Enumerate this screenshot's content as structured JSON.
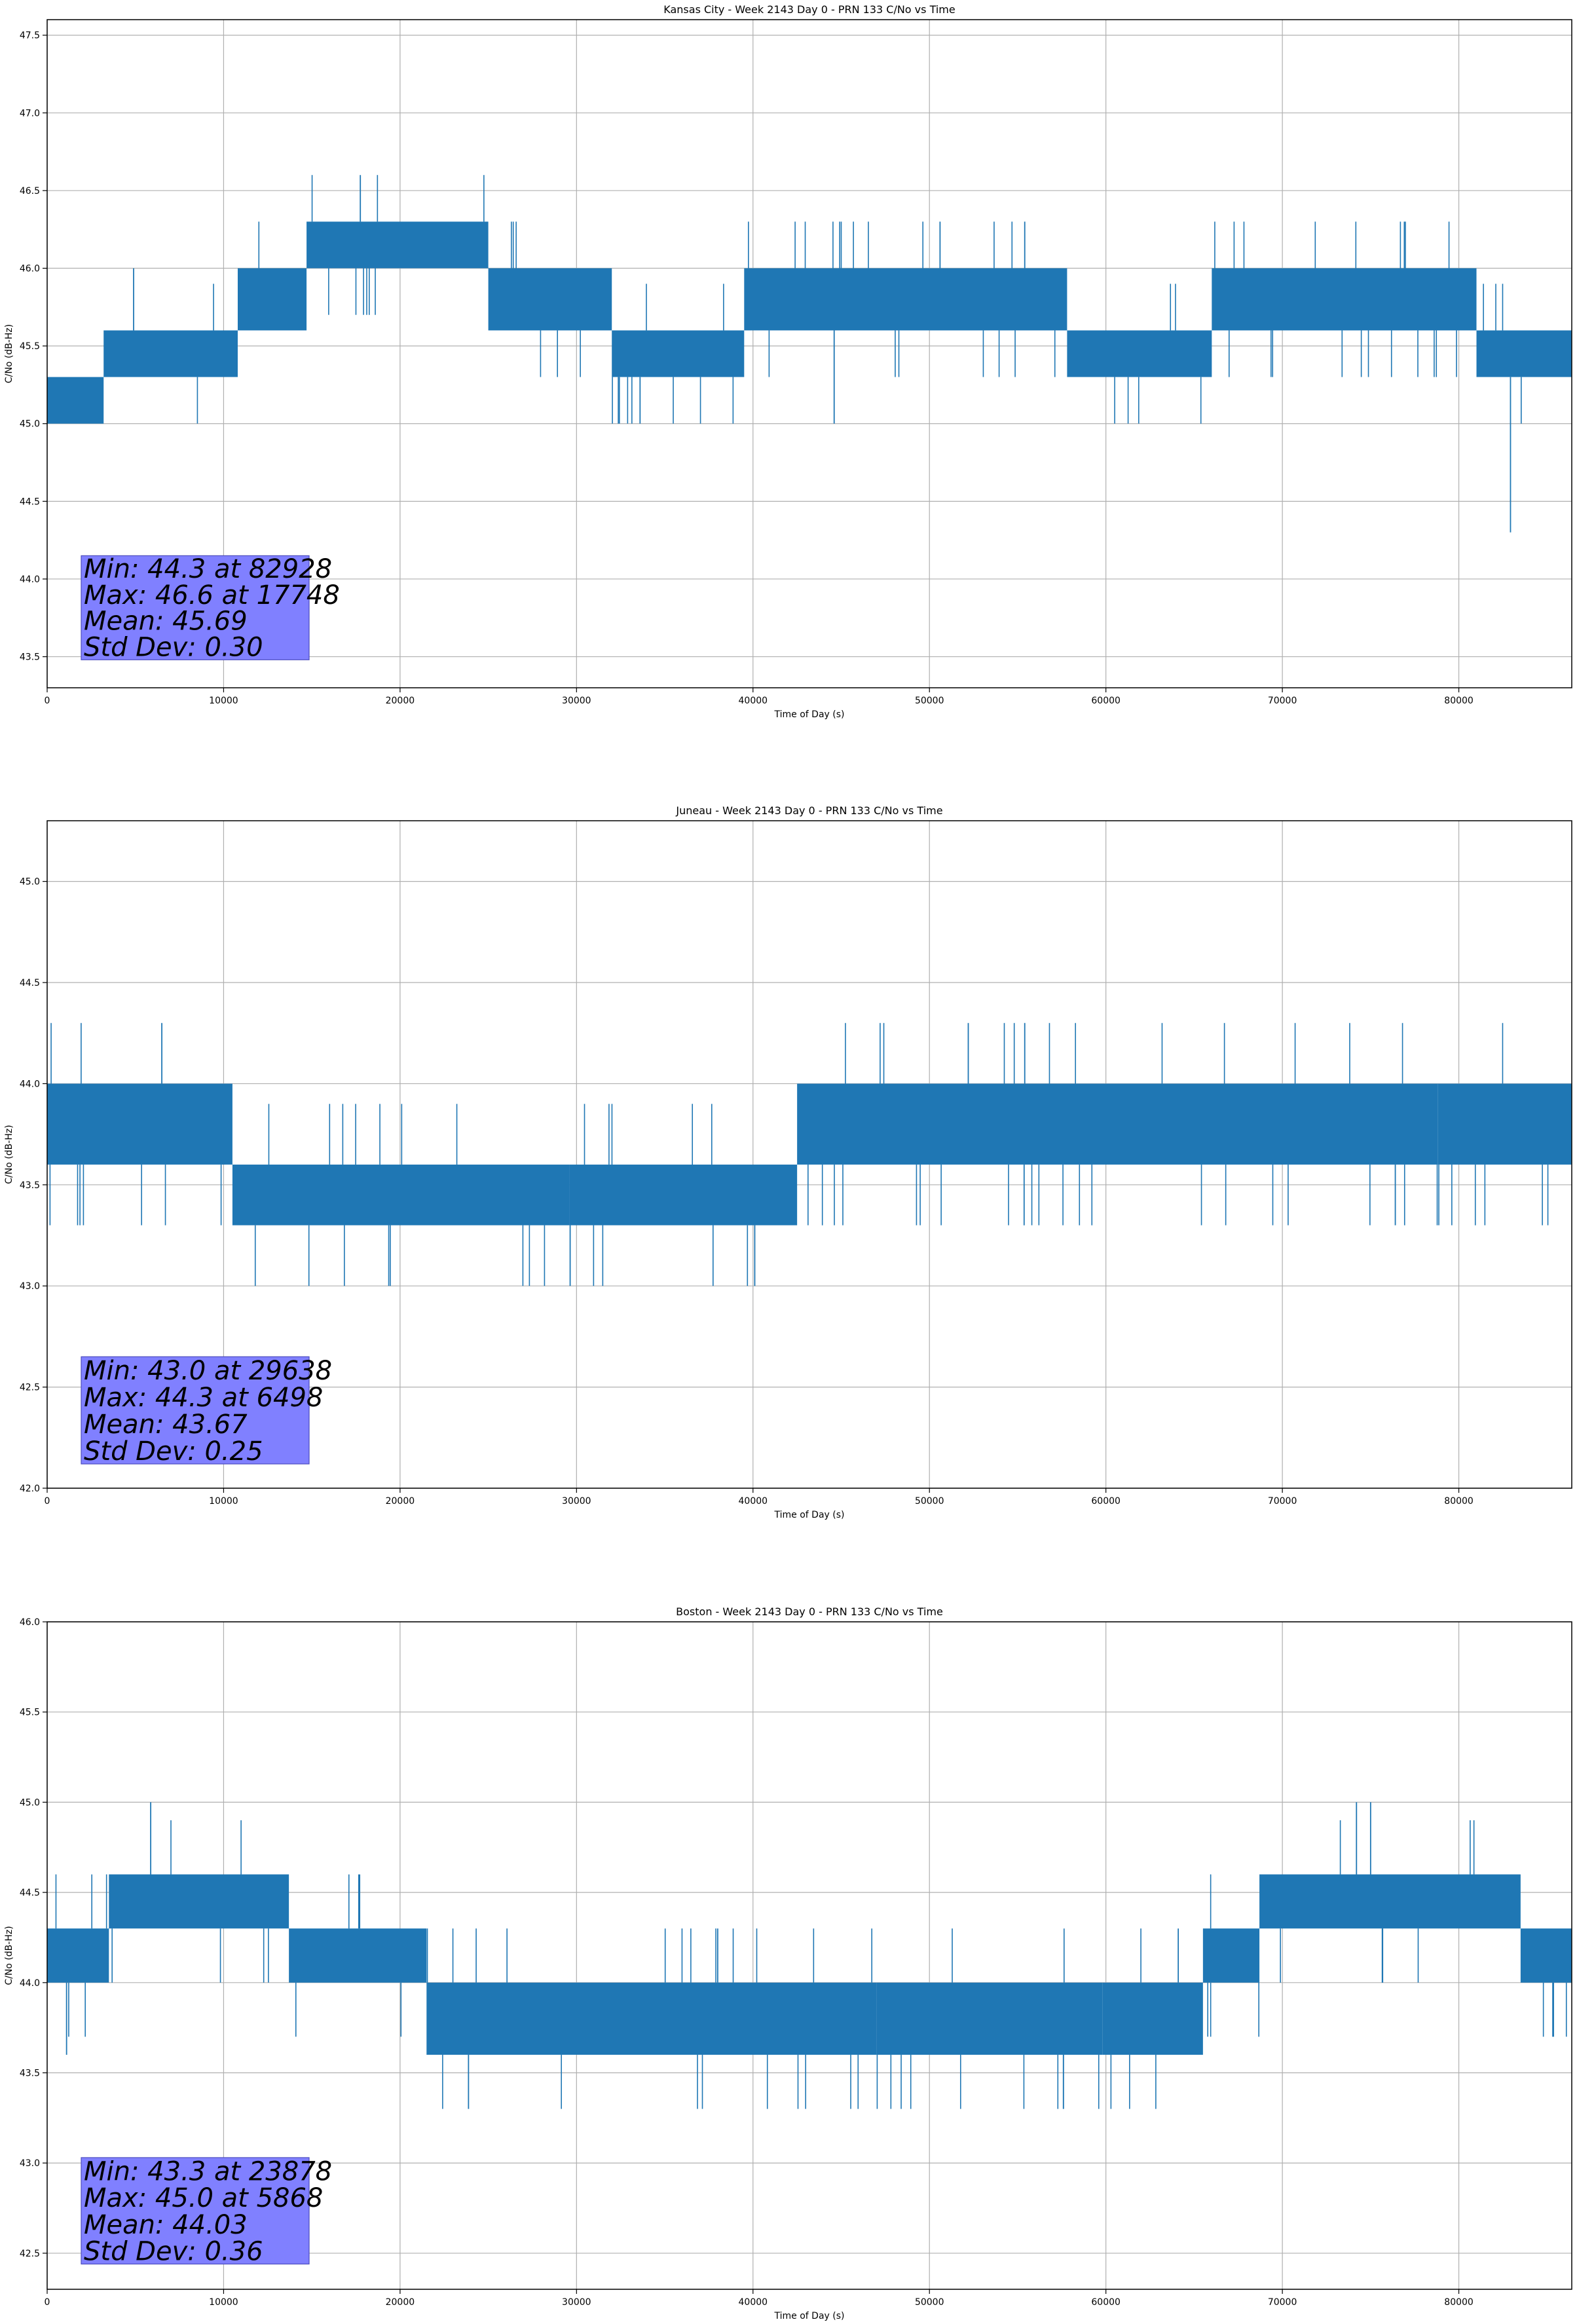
{
  "colors": {
    "series": "#1f77b4",
    "grid": "#b0b0b0",
    "stats_box": "#8080ff",
    "axes": "#000000"
  },
  "chart_data": [
    {
      "type": "line",
      "title": "Kansas City - Week 2143 Day 0 - PRN 133 C/No vs Time",
      "xlabel": "Time of Day (s)",
      "ylabel": "C/No (dB-Hz)",
      "xlim": [
        0,
        86400
      ],
      "ylim": [
        43.3,
        47.6
      ],
      "xticks": [
        0,
        10000,
        20000,
        30000,
        40000,
        50000,
        60000,
        70000,
        80000
      ],
      "yticks": [
        43.5,
        44.0,
        44.5,
        45.0,
        45.5,
        46.0,
        46.5,
        47.0,
        47.5
      ],
      "grid": true,
      "quantization_step": 0.3,
      "segments": [
        {
          "x_start": 0,
          "x_end": 3200,
          "low": 45.0,
          "high": 45.3
        },
        {
          "x_start": 3200,
          "x_end": 10800,
          "low": 45.3,
          "high": 45.6
        },
        {
          "x_start": 10800,
          "x_end": 14700,
          "low": 45.6,
          "high": 46.0
        },
        {
          "x_start": 14700,
          "x_end": 25000,
          "low": 46.0,
          "high": 46.3
        },
        {
          "x_start": 25000,
          "x_end": 32000,
          "low": 45.6,
          "high": 46.0
        },
        {
          "x_start": 32000,
          "x_end": 39500,
          "low": 45.3,
          "high": 45.6
        },
        {
          "x_start": 39500,
          "x_end": 57800,
          "low": 45.6,
          "high": 46.0
        },
        {
          "x_start": 57800,
          "x_end": 66000,
          "low": 45.3,
          "high": 45.6
        },
        {
          "x_start": 66000,
          "x_end": 81000,
          "low": 45.6,
          "high": 46.0
        },
        {
          "x_start": 81000,
          "x_end": 86400,
          "low": 45.3,
          "high": 45.6
        }
      ],
      "spikes": [
        {
          "x": 17748,
          "y": 46.6
        },
        {
          "x": 82928,
          "y": 44.3
        },
        {
          "x": 4900,
          "y": 46.0
        },
        {
          "x": 50600,
          "y": 46.3
        },
        {
          "x": 55400,
          "y": 46.3
        },
        {
          "x": 44600,
          "y": 45.0
        },
        {
          "x": 33600,
          "y": 45.0
        }
      ],
      "stats": [
        "Min: 44.3 at 82928",
        "Max: 46.6 at 17748",
        "Mean: 45.69",
        "Std Dev: 0.30"
      ],
      "stats_box": {
        "y_top": 44.15,
        "y_bottom": 43.48
      }
    },
    {
      "type": "line",
      "title": "Juneau - Week 2143 Day 0 - PRN 133 C/No vs Time",
      "xlabel": "Time of Day (s)",
      "ylabel": "C/No (dB-Hz)",
      "xlim": [
        0,
        86400
      ],
      "ylim": [
        42.0,
        45.3
      ],
      "xticks": [
        0,
        10000,
        20000,
        30000,
        40000,
        50000,
        60000,
        70000,
        80000
      ],
      "yticks": [
        42.0,
        42.5,
        43.0,
        43.5,
        44.0,
        44.5,
        45.0
      ],
      "grid": true,
      "quantization_step": 0.3,
      "segments": [
        {
          "x_start": 0,
          "x_end": 10500,
          "low": 43.6,
          "high": 44.0
        },
        {
          "x_start": 10500,
          "x_end": 29600,
          "low": 43.3,
          "high": 43.6
        },
        {
          "x_start": 29600,
          "x_end": 42500,
          "low": 43.3,
          "high": 43.6
        },
        {
          "x_start": 42500,
          "x_end": 78800,
          "low": 43.6,
          "high": 44.0
        },
        {
          "x_start": 78800,
          "x_end": 86400,
          "low": 43.6,
          "high": 44.0
        }
      ],
      "spikes": [
        {
          "x": 6498,
          "y": 44.3
        },
        {
          "x": 29638,
          "y": 43.0
        },
        {
          "x": 40100,
          "y": 43.0
        },
        {
          "x": 52200,
          "y": 44.3
        },
        {
          "x": 55400,
          "y": 44.3
        },
        {
          "x": 76400,
          "y": 43.3
        }
      ],
      "stats": [
        "Min: 43.0 at 29638",
        "Max: 44.3 at 6498",
        "Mean: 43.67",
        "Std Dev: 0.25"
      ],
      "stats_box": {
        "y_top": 42.65,
        "y_bottom": 42.12
      }
    },
    {
      "type": "line",
      "title": "Boston - Week 2143 Day 0 - PRN 133 C/No vs Time",
      "xlabel": "Time of Day (s)",
      "ylabel": "C/No (dB-Hz)",
      "xlim": [
        0,
        86400
      ],
      "ylim": [
        42.3,
        46.0
      ],
      "xticks": [
        0,
        10000,
        20000,
        30000,
        40000,
        50000,
        60000,
        70000,
        80000
      ],
      "yticks": [
        42.5,
        43.0,
        43.5,
        44.0,
        44.5,
        45.0,
        45.5,
        46.0
      ],
      "grid": true,
      "quantization_step": 0.3,
      "segments": [
        {
          "x_start": 0,
          "x_end": 3500,
          "low": 44.0,
          "high": 44.3
        },
        {
          "x_start": 3500,
          "x_end": 13700,
          "low": 44.3,
          "high": 44.6
        },
        {
          "x_start": 13700,
          "x_end": 21500,
          "low": 44.0,
          "high": 44.3
        },
        {
          "x_start": 21500,
          "x_end": 47000,
          "low": 43.6,
          "high": 44.0
        },
        {
          "x_start": 47000,
          "x_end": 59800,
          "low": 43.6,
          "high": 44.0
        },
        {
          "x_start": 59800,
          "x_end": 65500,
          "low": 43.6,
          "high": 44.0
        },
        {
          "x_start": 65500,
          "x_end": 68700,
          "low": 44.0,
          "high": 44.3
        },
        {
          "x_start": 68700,
          "x_end": 83500,
          "low": 44.3,
          "high": 44.6
        },
        {
          "x_start": 83500,
          "x_end": 86400,
          "low": 44.0,
          "high": 44.3
        }
      ],
      "spikes": [
        {
          "x": 5868,
          "y": 45.0
        },
        {
          "x": 23878,
          "y": 43.3
        },
        {
          "x": 1100,
          "y": 43.6
        },
        {
          "x": 74200,
          "y": 45.0
        },
        {
          "x": 75000,
          "y": 45.0
        },
        {
          "x": 38000,
          "y": 44.3
        },
        {
          "x": 64100,
          "y": 44.3
        }
      ],
      "stats": [
        "Min: 43.3 at 23878",
        "Max: 45.0 at 5868",
        "Mean: 44.03",
        "Std Dev: 0.36"
      ],
      "stats_box": {
        "y_top": 43.03,
        "y_bottom": 42.44
      }
    }
  ]
}
